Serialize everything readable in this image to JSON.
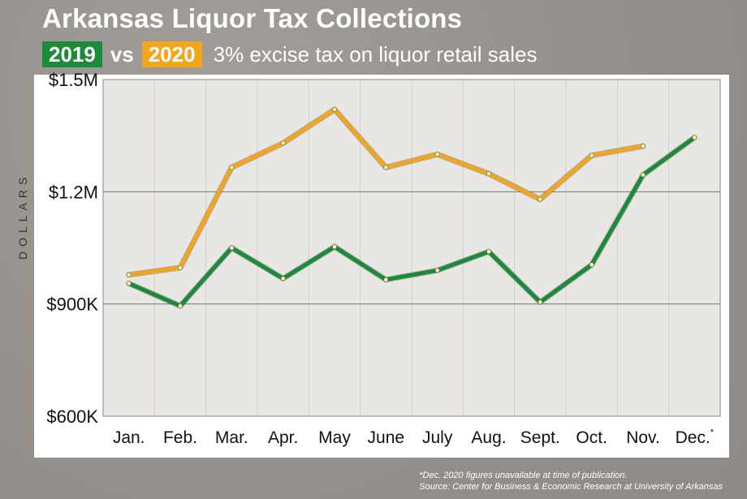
{
  "header": {
    "title": "Arkansas Liquor Tax Collections",
    "badge_2019": "2019",
    "vs": "vs",
    "badge_2020": "2020",
    "subtitle": "3% excise tax on liquor retail sales"
  },
  "footnote": {
    "line1": "*Dec. 2020 figures unavailable at time of publication.",
    "line2": "Source: Center for Business & Economic Research at University of Arkansas"
  },
  "colors": {
    "2019": "#1b8a3a",
    "2020": "#f3a51c",
    "plot_bg": "#e9e7e4",
    "grid": "#777777"
  },
  "chart_data": {
    "type": "line",
    "title": "Arkansas Liquor Tax Collections",
    "ylabel": "DOLLARS",
    "xlabel": "",
    "categories": [
      "Jan.",
      "Feb.",
      "Mar.",
      "Apr.",
      "May",
      "June",
      "July",
      "Aug.",
      "Sept.",
      "Oct.",
      "Nov.",
      "Dec."
    ],
    "category_notes": {
      "Dec.": "*"
    },
    "ylim": [
      600000,
      1500000
    ],
    "yticks": [
      600000,
      900000,
      1200000,
      1500000
    ],
    "ytick_labels": [
      "$600K",
      "$900K",
      "$1.2M",
      "$1.5M"
    ],
    "grid": true,
    "series": [
      {
        "name": "2019",
        "color": "#1b8a3a",
        "values": [
          955000,
          895000,
          1050000,
          968000,
          1053000,
          965000,
          990000,
          1040000,
          905000,
          1005000,
          1245000,
          1345000
        ]
      },
      {
        "name": "2020",
        "color": "#f3a51c",
        "values": [
          978000,
          997000,
          1265000,
          1330000,
          1420000,
          1265000,
          1300000,
          1248000,
          1180000,
          1297000,
          1322000,
          null
        ]
      }
    ]
  }
}
